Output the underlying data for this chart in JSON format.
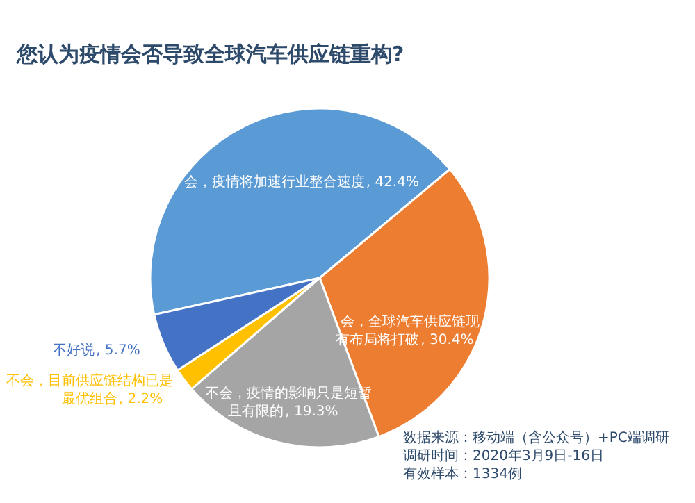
{
  "chart_data": {
    "type": "pie",
    "title": "您认为疫情会否导致全球汽车供应链重构?",
    "categories": [
      "会，疫情将加速行业整合速度",
      "会，全球汽车供应链现有布局将打破",
      "不会，疫情的影响只是短暂且有限的",
      "不会，目前供应链结构已是最优组合",
      "不好说"
    ],
    "values": [
      42.4,
      30.4,
      19.3,
      2.2,
      5.7
    ],
    "colors": [
      "#5b9bd5",
      "#ed7d31",
      "#a5a5a5",
      "#ffc000",
      "#4472c4"
    ],
    "value_labels": [
      ", 42.4%",
      ", 30.4%",
      ", 19.3%",
      ", 2.2%",
      ", 5.7%"
    ],
    "legend": false,
    "annotations": [
      "数据来源：移动端（含公众号）+PC端调研",
      "调研时间：2020年3月9日-16日",
      "有效样本：1334例"
    ]
  }
}
